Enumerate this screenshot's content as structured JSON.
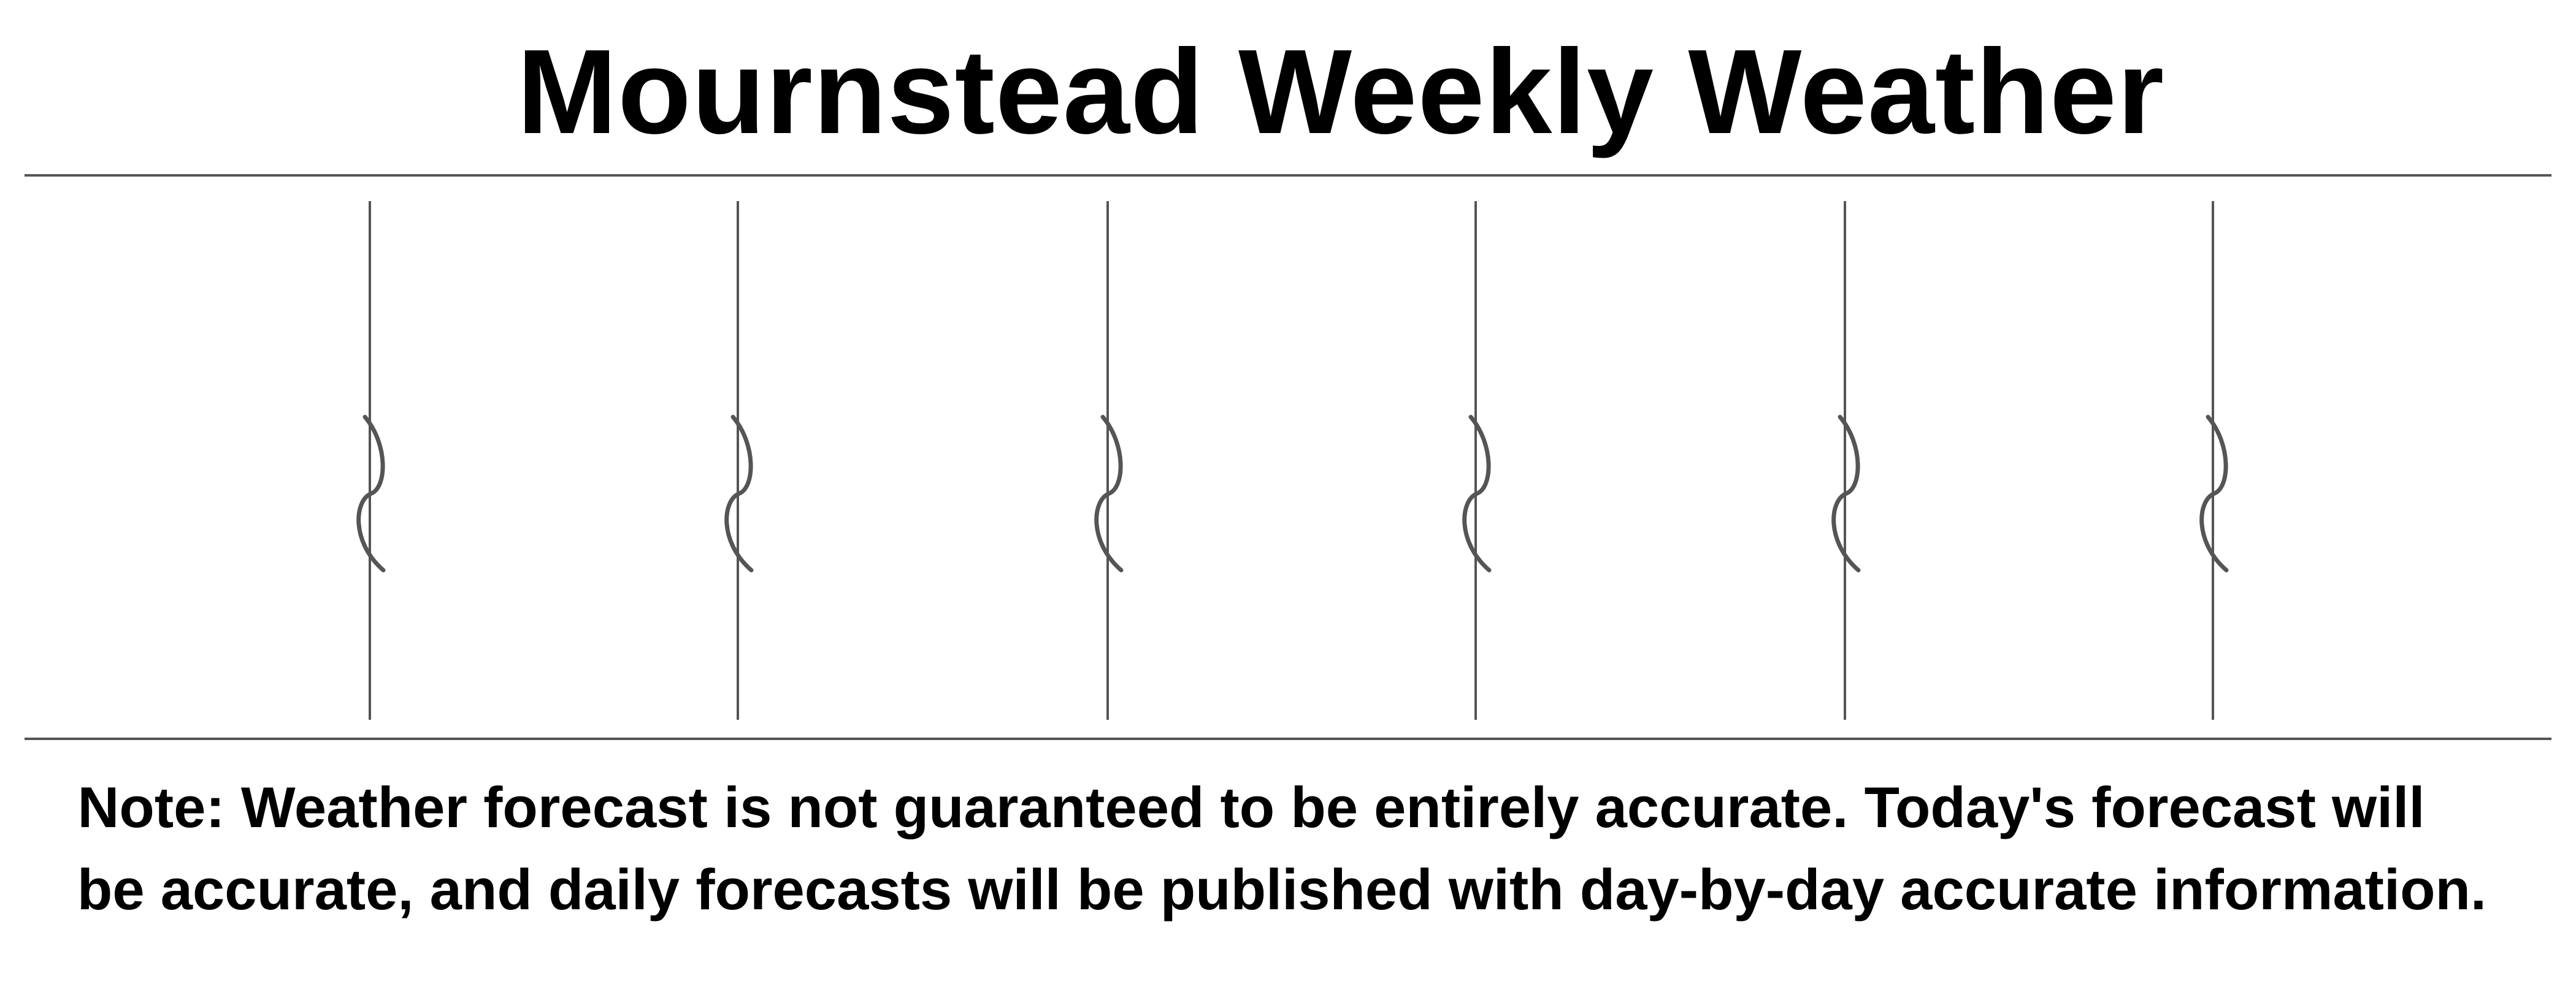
{
  "header": {
    "title": "Mournstead Weekly Weather"
  },
  "forecast": {
    "day_columns": 7,
    "divider_count": 6,
    "divider_icon": "wavy-break-icon"
  },
  "footer": {
    "note_line_1": "Note: Weather forecast is not guaranteed to be entirely accurate. Today's forecast will",
    "note_line_2": "be accurate, and daily forecasts will be published with day-by-day accurate information."
  },
  "colors": {
    "text": "#000000",
    "rule": "#555555",
    "divider": "#555555",
    "background": "#ffffff"
  }
}
